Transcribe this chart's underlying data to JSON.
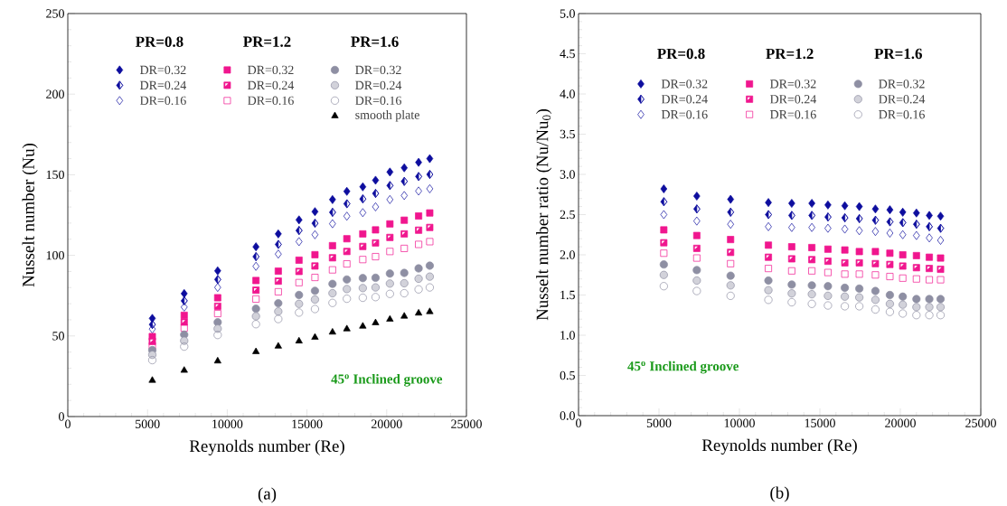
{
  "chart_data": [
    {
      "type": "scatter",
      "xlabel": "Reynolds number (Re)",
      "ylabel": "Nusselt number (Nu)",
      "xlim": [
        0,
        25000
      ],
      "ylim": [
        0,
        250
      ],
      "xticks": [
        0,
        5000,
        10000,
        15000,
        20000,
        25000
      ],
      "yticks": [
        0,
        50,
        100,
        150,
        200,
        250
      ],
      "legend": "top",
      "x": [
        5300,
        7300,
        9400,
        11800,
        13200,
        14500,
        15500,
        16600,
        17500,
        18500,
        19300,
        20200,
        21100,
        22000,
        22700
      ],
      "annotations": [
        "PR=0.8",
        "PR=1.2",
        "PR=1.6",
        "45$^{o}$ Inclined groove",
        "(a)"
      ],
      "series": [
        {
          "name": "DR=0.32",
          "color": "#0d0d9e",
          "marker": "diamond",
          "values": [
            60.9,
            76.3,
            90.4,
            105.3,
            113.3,
            122.0,
            127.1,
            134.6,
            139.7,
            142.5,
            146.6,
            151.7,
            154.3,
            157.7,
            160.0
          ]
        },
        {
          "name": "DR=0.24",
          "color": "#0d0d9e",
          "marker": "diamond",
          "values": [
            57.1,
            71.8,
            85.0,
            99.2,
            106.8,
            115.4,
            119.9,
            126.7,
            132.0,
            135.0,
            138.4,
            143.3,
            145.9,
            148.9,
            150.2
          ]
        },
        {
          "name": "DR=0.16",
          "color": "#0d0d9e",
          "marker": "diamond",
          "values": [
            54.3,
            67.9,
            80.1,
            93.2,
            100.8,
            108.5,
            112.8,
            119.6,
            124.3,
            126.5,
            130.1,
            134.6,
            137.1,
            139.9,
            141.3
          ]
        },
        {
          "name": "DR=0.32",
          "color": "#f0168e",
          "marker": "square",
          "values": [
            49.6,
            62.8,
            73.7,
            84.4,
            90.2,
            97.0,
            100.4,
            106.0,
            110.3,
            113.3,
            115.8,
            119.5,
            121.8,
            124.4,
            126.3
          ]
        },
        {
          "name": "DR=0.24",
          "color": "#f0168e",
          "marker": "square",
          "values": [
            46.6,
            58.6,
            68.4,
            78.4,
            84.0,
            90.0,
            93.4,
            98.5,
            102.4,
            105.5,
            107.7,
            111.1,
            113.3,
            115.6,
            117.3
          ]
        },
        {
          "name": "DR=0.16",
          "color": "#f0168e",
          "marker": "square",
          "values": [
            43.8,
            54.9,
            63.9,
            72.9,
            77.4,
            83.1,
            86.3,
            91.0,
            94.7,
            97.4,
            99.2,
            102.4,
            104.3,
            106.8,
            108.5
          ]
        },
        {
          "name": "DR=0.32",
          "color": "#8e8fa3",
          "marker": "circle",
          "values": [
            41.2,
            50.8,
            58.5,
            66.9,
            70.3,
            75.4,
            78.0,
            82.3,
            85.0,
            85.9,
            86.1,
            88.7,
            89.1,
            91.9,
            93.6
          ]
        },
        {
          "name": "DR=0.24",
          "color": "#8e8fa3",
          "marker": "circle",
          "values": [
            38.3,
            47.0,
            54.5,
            62.2,
            65.2,
            69.9,
            72.6,
            76.5,
            79.1,
            79.7,
            80.1,
            82.5,
            82.7,
            85.5,
            86.8
          ]
        },
        {
          "name": "DR=0.16",
          "color": "#8e8fa3",
          "marker": "circle",
          "values": [
            35.0,
            43.4,
            50.6,
            57.3,
            60.5,
            64.5,
            66.7,
            70.5,
            73.1,
            73.7,
            74.1,
            76.1,
            76.5,
            78.9,
            80.1
          ]
        },
        {
          "name": "smooth plate",
          "color": "#000000",
          "marker": "triangle",
          "values": [
            22.4,
            28.6,
            34.4,
            40.2,
            43.6,
            46.8,
            49.1,
            52.3,
            54.3,
            56.0,
            58.1,
            60.3,
            62.2,
            64.1,
            65.0
          ]
        }
      ]
    },
    {
      "type": "scatter",
      "xlabel": "Reynolds number (Re)",
      "ylabel": "Nusselt number ratio (Nu/Nu$_{0}$)",
      "xlim": [
        0,
        25000
      ],
      "ylim": [
        0,
        5
      ],
      "xticks": [
        0,
        5000,
        10000,
        15000,
        20000,
        25000
      ],
      "yticks": [
        {
          "value": 0,
          "label": "0.0"
        },
        0.5,
        {
          "value": 1,
          "label": "1.0"
        },
        1.5,
        {
          "value": 2,
          "label": "2.0"
        },
        2.5,
        {
          "value": 3,
          "label": "3.0"
        },
        3.5,
        {
          "value": 4,
          "label": "4.0"
        },
        4.5,
        {
          "value": 5,
          "label": "5.0"
        }
      ],
      "legend": "top",
      "x": [
        5300,
        7350,
        9450,
        11800,
        13250,
        14500,
        15500,
        16550,
        17450,
        18450,
        19350,
        20150,
        21000,
        21800,
        22500
      ],
      "annotations": [
        "PR=0.8",
        "PR=1.2",
        "PR=1.6",
        "45$^{o}$ Inclined groove",
        "(b)"
      ],
      "series": [
        {
          "name": "DR=0.32",
          "color": "#0d0d9e",
          "marker": "diamond",
          "values": [
            2.82,
            2.73,
            2.69,
            2.65,
            2.64,
            2.64,
            2.62,
            2.61,
            2.6,
            2.57,
            2.56,
            2.53,
            2.52,
            2.49,
            2.48
          ]
        },
        {
          "name": "DR=0.24",
          "color": "#0d0d9e",
          "marker": "diamond",
          "values": [
            2.66,
            2.57,
            2.53,
            2.5,
            2.49,
            2.49,
            2.47,
            2.46,
            2.45,
            2.43,
            2.41,
            2.4,
            2.38,
            2.35,
            2.33
          ]
        },
        {
          "name": "DR=0.16",
          "color": "#0d0d9e",
          "marker": "diamond",
          "values": [
            2.5,
            2.42,
            2.38,
            2.35,
            2.34,
            2.34,
            2.33,
            2.32,
            2.3,
            2.29,
            2.27,
            2.25,
            2.24,
            2.21,
            2.18
          ]
        },
        {
          "name": "DR=0.32",
          "color": "#f0168e",
          "marker": "square",
          "values": [
            2.31,
            2.24,
            2.19,
            2.12,
            2.1,
            2.09,
            2.07,
            2.06,
            2.04,
            2.04,
            2.02,
            2.0,
            1.99,
            1.97,
            1.96
          ]
        },
        {
          "name": "DR=0.24",
          "color": "#f0168e",
          "marker": "square",
          "values": [
            2.15,
            2.08,
            2.03,
            1.97,
            1.95,
            1.94,
            1.92,
            1.9,
            1.9,
            1.89,
            1.88,
            1.86,
            1.84,
            1.83,
            1.82
          ]
        },
        {
          "name": "DR=0.16",
          "color": "#f0168e",
          "marker": "square",
          "values": [
            2.02,
            1.96,
            1.89,
            1.83,
            1.8,
            1.8,
            1.78,
            1.76,
            1.76,
            1.75,
            1.73,
            1.71,
            1.7,
            1.69,
            1.69
          ]
        },
        {
          "name": "DR=0.32",
          "color": "#8e8fa3",
          "marker": "circle",
          "values": [
            1.88,
            1.81,
            1.74,
            1.68,
            1.63,
            1.62,
            1.61,
            1.59,
            1.58,
            1.55,
            1.5,
            1.48,
            1.45,
            1.45,
            1.45
          ]
        },
        {
          "name": "DR=0.24",
          "color": "#8e8fa3",
          "marker": "circle",
          "values": [
            1.75,
            1.68,
            1.62,
            1.56,
            1.52,
            1.51,
            1.49,
            1.48,
            1.47,
            1.44,
            1.39,
            1.38,
            1.35,
            1.35,
            1.35
          ]
        },
        {
          "name": "DR=0.16",
          "color": "#8e8fa3",
          "marker": "circle",
          "values": [
            1.61,
            1.55,
            1.49,
            1.44,
            1.41,
            1.39,
            1.37,
            1.36,
            1.36,
            1.32,
            1.29,
            1.27,
            1.25,
            1.25,
            1.25
          ]
        }
      ]
    }
  ]
}
